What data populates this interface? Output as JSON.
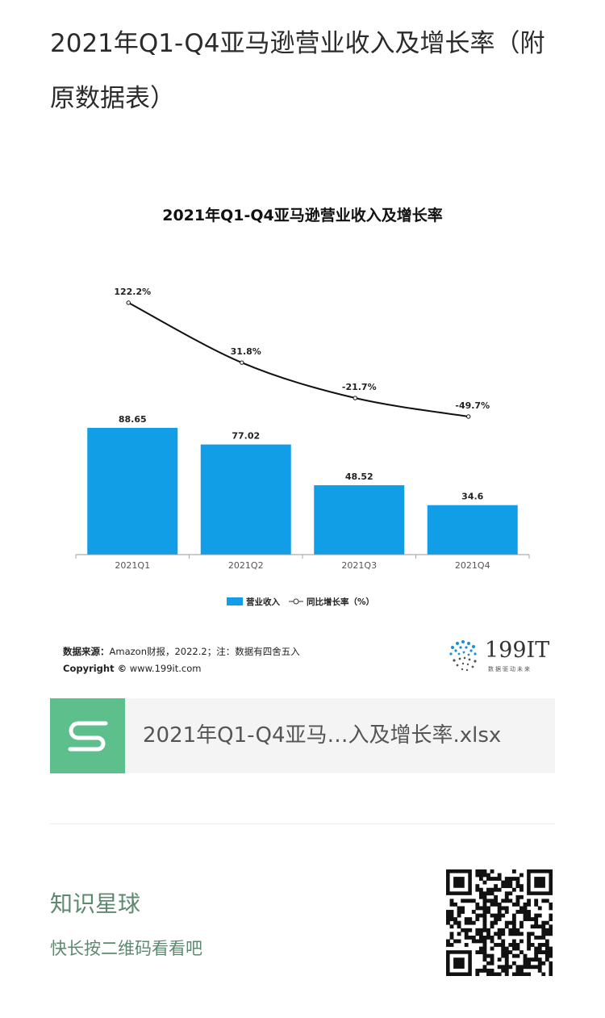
{
  "page": {
    "title": "2021年Q1-Q4亚马逊营业收入及增长率（附原数据表）"
  },
  "chart_data": {
    "type": "bar",
    "title": "2021年Q1-Q4亚马逊营业收入及增长率",
    "categories": [
      "2021Q1",
      "2021Q2",
      "2021Q3",
      "2021Q4"
    ],
    "series": [
      {
        "name": "营业收入",
        "type": "bar",
        "values": [
          88.65,
          77.02,
          48.52,
          34.6
        ],
        "labels": [
          "88.65",
          "77.02",
          "48.52",
          "34.6"
        ],
        "color": "#119ee6"
      },
      {
        "name": "同比增长率（%）",
        "type": "line",
        "values": [
          122.2,
          31.8,
          -21.7,
          -49.7
        ],
        "labels": [
          "122.2%",
          "31.8%",
          "-21.7%",
          "-49.7%"
        ],
        "color": "#111111"
      }
    ],
    "legend_position": "bottom",
    "grid": false
  },
  "source": {
    "label": "数据来源：",
    "text": "Amazon财报，2022.2；注：数据有四舍五入",
    "copyright_label": "Copyright ©",
    "copyright_text": "www.199it.com"
  },
  "logo": {
    "text": "199IT",
    "sub": "数据驱动未来"
  },
  "file": {
    "name": "2021年Q1-Q4亚马…入及增长率.xlsx",
    "icon": "spreadsheet-s-icon",
    "icon_color": "#5cbf8c"
  },
  "planet": {
    "title": "知识星球",
    "subtitle": "快长按二维码看看吧"
  }
}
